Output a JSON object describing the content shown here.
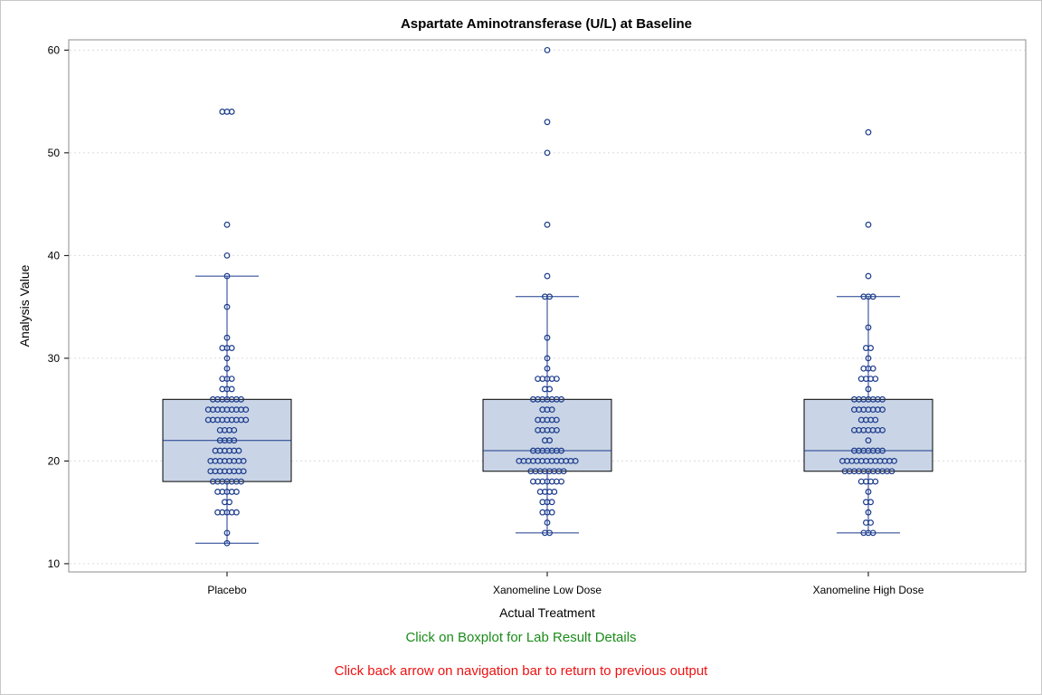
{
  "chart_data": {
    "type": "box",
    "title": "Aspartate Aminotransferase (U/L) at Baseline",
    "xlabel": "Actual Treatment",
    "ylabel": "Analysis Value",
    "ylim": [
      9.2,
      61
    ],
    "yticks": [
      10,
      20,
      30,
      40,
      50,
      60
    ],
    "grid": true,
    "categories": [
      "Placebo",
      "Xanomeline Low Dose",
      "Xanomeline High Dose"
    ],
    "boxes": [
      {
        "name": "Placebo",
        "whisker_low": 12,
        "q1": 18,
        "median": 22,
        "q3": 26,
        "whisker_high": 38
      },
      {
        "name": "Xanomeline Low Dose",
        "whisker_low": 13,
        "q1": 19,
        "median": 21,
        "q3": 26,
        "whisker_high": 36
      },
      {
        "name": "Xanomeline High Dose",
        "whisker_low": 13,
        "q1": 19,
        "median": 21,
        "q3": 26,
        "whisker_high": 36
      }
    ],
    "points": [
      [
        12,
        13,
        15,
        15,
        15,
        15,
        15,
        16,
        16,
        17,
        17,
        17,
        17,
        17,
        18,
        18,
        18,
        18,
        18,
        18,
        18,
        19,
        19,
        19,
        19,
        19,
        19,
        19,
        19,
        20,
        20,
        20,
        20,
        20,
        20,
        20,
        20,
        21,
        21,
        21,
        21,
        21,
        21,
        22,
        22,
        22,
        22,
        23,
        23,
        23,
        23,
        24,
        24,
        24,
        24,
        24,
        24,
        24,
        24,
        24,
        25,
        25,
        25,
        25,
        25,
        25,
        25,
        25,
        25,
        26,
        26,
        26,
        26,
        26,
        26,
        26,
        27,
        27,
        27,
        28,
        28,
        28,
        29,
        30,
        31,
        31,
        31,
        32,
        35,
        38,
        40,
        43,
        54,
        54,
        54
      ],
      [
        13,
        13,
        14,
        15,
        15,
        15,
        16,
        16,
        16,
        17,
        17,
        17,
        17,
        18,
        18,
        18,
        18,
        18,
        18,
        18,
        19,
        19,
        19,
        19,
        19,
        19,
        19,
        19,
        20,
        20,
        20,
        20,
        20,
        20,
        20,
        20,
        20,
        20,
        20,
        20,
        20,
        21,
        21,
        21,
        21,
        21,
        21,
        21,
        22,
        22,
        23,
        23,
        23,
        23,
        23,
        24,
        24,
        24,
        24,
        24,
        25,
        25,
        25,
        26,
        26,
        26,
        26,
        26,
        26,
        26,
        27,
        27,
        28,
        28,
        28,
        28,
        28,
        29,
        30,
        32,
        36,
        36,
        38,
        43,
        50,
        53,
        60
      ],
      [
        13,
        13,
        13,
        14,
        14,
        15,
        16,
        16,
        17,
        18,
        18,
        18,
        18,
        19,
        19,
        19,
        19,
        19,
        19,
        19,
        19,
        19,
        19,
        19,
        20,
        20,
        20,
        20,
        20,
        20,
        20,
        20,
        20,
        20,
        20,
        20,
        21,
        21,
        21,
        21,
        21,
        21,
        21,
        22,
        23,
        23,
        23,
        23,
        23,
        23,
        23,
        24,
        24,
        24,
        24,
        25,
        25,
        25,
        25,
        25,
        25,
        25,
        26,
        26,
        26,
        26,
        26,
        26,
        26,
        27,
        28,
        28,
        28,
        28,
        29,
        29,
        29,
        30,
        31,
        31,
        33,
        36,
        36,
        36,
        38,
        43,
        52
      ]
    ],
    "colors": {
      "box_fill": "#c9d5e6",
      "box_edge": "#000000",
      "median": "#1a3a8c",
      "whisker": "#1a3a8c",
      "marker": "#1a3a8c",
      "grid": "#dcdcdc"
    }
  },
  "notes": {
    "green": "Click on Boxplot for Lab Result Details",
    "green_color": "#1a8c1a",
    "red": "Click back arrow on navigation bar to return to previous output",
    "red_color": "#ee1111"
  }
}
